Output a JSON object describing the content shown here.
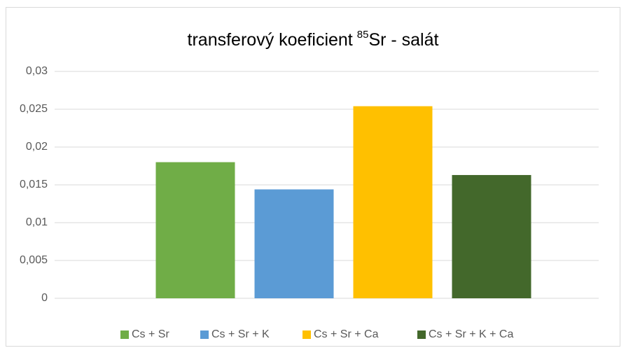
{
  "chart_data": {
    "type": "bar",
    "title": [
      "transferový koeficient",
      "85",
      "Sr - salát"
    ],
    "categories": [
      null
    ],
    "series": [
      {
        "name": "Cs + Sr",
        "color": "#70ad47",
        "values": [
          0.018
        ]
      },
      {
        "name": "Cs + Sr + K",
        "color": "#5b9bd5",
        "values": [
          0.0144
        ]
      },
      {
        "name": "Cs + Sr + Ca",
        "color": "#ffc000",
        "values": [
          0.0254
        ]
      },
      {
        "name": "Cs + Sr + K + Ca",
        "color": "#43682b",
        "values": [
          0.0163
        ]
      }
    ],
    "ylim": [
      0,
      0.03
    ],
    "yticks": [
      0,
      {
        "value": 0.005,
        "label": "0,005"
      },
      {
        "value": 0.01,
        "label": "0,01"
      },
      {
        "value": 0.015,
        "label": "0,015"
      },
      {
        "value": 0.02,
        "label": "0,02"
      },
      {
        "value": 0.025,
        "label": "0,025"
      },
      {
        "value": 0.03,
        "label": "0,03"
      }
    ],
    "grid": true,
    "legend": "bottom"
  }
}
